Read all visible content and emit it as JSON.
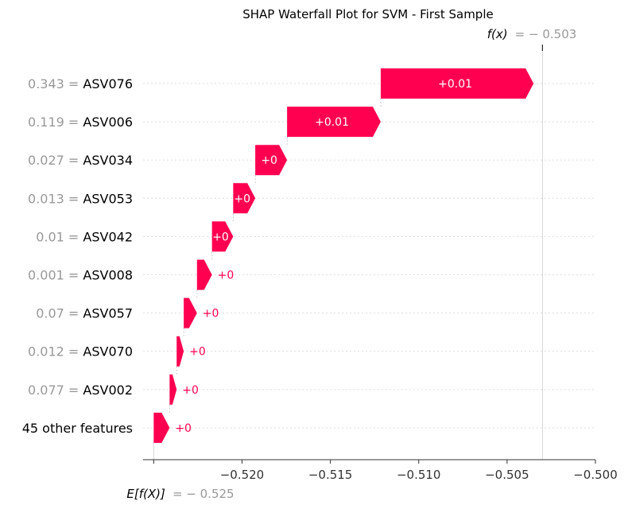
{
  "chart_data": {
    "type": "waterfall",
    "title": "SHAP Waterfall Plot for SVM - First Sample",
    "base_value": -0.525,
    "output_value": -0.503,
    "fx_label": "f(x)",
    "fx_value_text": "= − 0.503",
    "ex_label": "E[f(X)]",
    "ex_value_text": "= − 0.525",
    "xlim": [
      -0.5256,
      -0.5
    ],
    "xticks": [
      {
        "value": -0.52,
        "label": "−0.520"
      },
      {
        "value": -0.515,
        "label": "−0.515"
      },
      {
        "value": -0.51,
        "label": "−0.510"
      },
      {
        "value": -0.505,
        "label": "−0.505"
      },
      {
        "value": -0.5,
        "label": "−0.500"
      }
    ],
    "color_positive": "#ff0051",
    "features": [
      {
        "value_text": "0.343 =",
        "name": "ASV076",
        "start": -0.51215,
        "end": -0.5035,
        "label": "+0.01"
      },
      {
        "value_text": "0.119 =",
        "name": "ASV006",
        "start": -0.51745,
        "end": -0.51215,
        "label": "+0.01"
      },
      {
        "value_text": "0.027 =",
        "name": "ASV034",
        "start": -0.51925,
        "end": -0.51745,
        "label": "+0"
      },
      {
        "value_text": "0.013 =",
        "name": "ASV053",
        "start": -0.5205,
        "end": -0.51925,
        "label": "+0"
      },
      {
        "value_text": "0.01 =",
        "name": "ASV042",
        "start": -0.5217,
        "end": -0.5205,
        "label": "+0"
      },
      {
        "value_text": "0.001 =",
        "name": "ASV008",
        "start": -0.52255,
        "end": -0.5217,
        "label": "+0"
      },
      {
        "value_text": "0.07 =",
        "name": "ASV057",
        "start": -0.5233,
        "end": -0.52255,
        "label": "+0"
      },
      {
        "value_text": "0.012 =",
        "name": "ASV070",
        "start": -0.5237,
        "end": -0.5233,
        "label": "+0"
      },
      {
        "value_text": "0.077 =",
        "name": "ASV002",
        "start": -0.5241,
        "end": -0.5237,
        "label": "+0"
      },
      {
        "value_text": "",
        "name": "45 other features",
        "start": -0.525,
        "end": -0.5241,
        "label": "+0"
      }
    ]
  }
}
